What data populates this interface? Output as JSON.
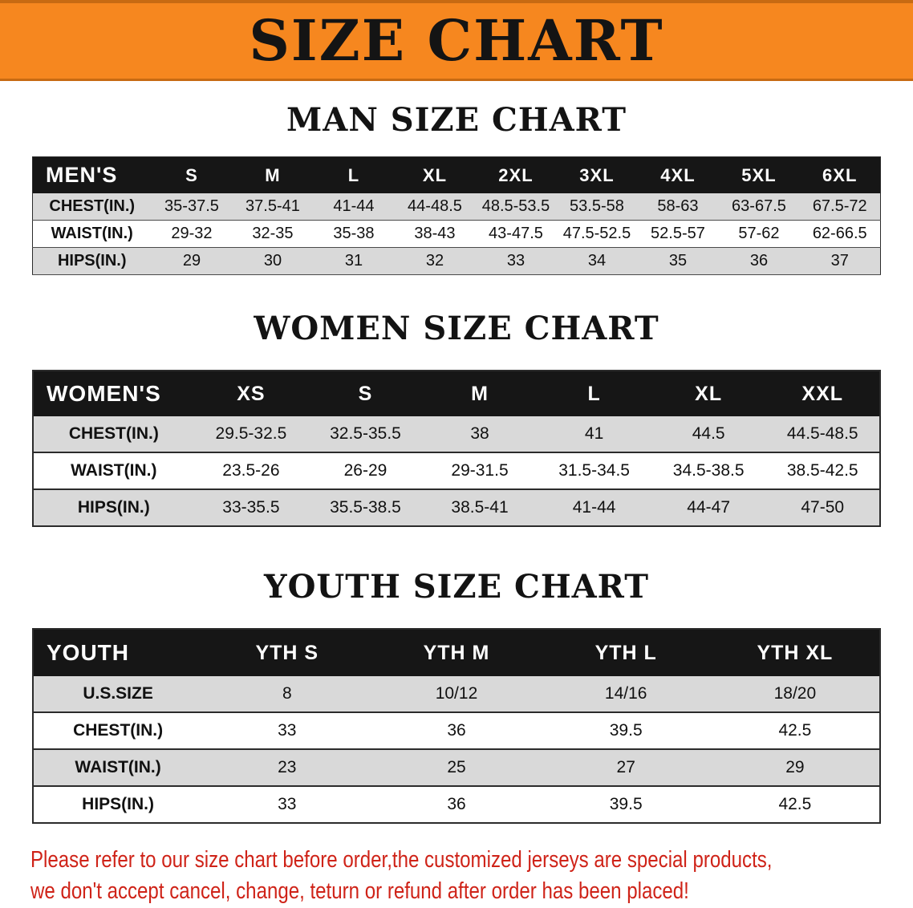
{
  "banner": {
    "title": "SIZE CHART"
  },
  "chart_data": [
    {
      "type": "table",
      "title": "MAN SIZE CHART",
      "header": [
        "MEN'S",
        "S",
        "M",
        "L",
        "XL",
        "2XL",
        "3XL",
        "4XL",
        "5XL",
        "6XL"
      ],
      "rows": [
        [
          "CHEST(IN.)",
          "35-37.5",
          "37.5-41",
          "41-44",
          "44-48.5",
          "48.5-53.5",
          "53.5-58",
          "58-63",
          "63-67.5",
          "67.5-72"
        ],
        [
          "WAIST(IN.)",
          "29-32",
          "32-35",
          "35-38",
          "38-43",
          "43-47.5",
          "47.5-52.5",
          "52.5-57",
          "57-62",
          "62-66.5"
        ],
        [
          "HIPS(IN.)",
          "29",
          "30",
          "31",
          "32",
          "33",
          "34",
          "35",
          "36",
          "37"
        ]
      ]
    },
    {
      "type": "table",
      "title": "WOMEN SIZE CHART",
      "header": [
        "WOMEN'S",
        "XS",
        "S",
        "M",
        "L",
        "XL",
        "XXL"
      ],
      "rows": [
        [
          "CHEST(IN.)",
          "29.5-32.5",
          "32.5-35.5",
          "38",
          "41",
          "44.5",
          "44.5-48.5"
        ],
        [
          "WAIST(IN.)",
          "23.5-26",
          "26-29",
          "29-31.5",
          "31.5-34.5",
          "34.5-38.5",
          "38.5-42.5"
        ],
        [
          "HIPS(IN.)",
          "33-35.5",
          "35.5-38.5",
          "38.5-41",
          "41-44",
          "44-47",
          "47-50"
        ]
      ]
    },
    {
      "type": "table",
      "title": "YOUTH SIZE CHART",
      "header": [
        "YOUTH",
        "YTH S",
        "YTH M",
        "YTH L",
        "YTH XL"
      ],
      "rows": [
        [
          "U.S.SIZE",
          "8",
          "10/12",
          "14/16",
          "18/20"
        ],
        [
          "CHEST(IN.)",
          "33",
          "36",
          "39.5",
          "42.5"
        ],
        [
          "WAIST(IN.)",
          "23",
          "25",
          "27",
          "29"
        ],
        [
          "HIPS(IN.)",
          "33",
          "36",
          "39.5",
          "42.5"
        ]
      ]
    }
  ],
  "disclaimer": {
    "line1": "Please refer to our size chart before order,the customized jerseys are special products,",
    "line2": "we don't accept cancel, change, teturn or refund after order has been placed!"
  },
  "colors": {
    "banner_bg": "#f6871f",
    "table_header_bg": "#161616",
    "row_shade": "#d9d9d9",
    "disclaimer_text": "#cf2318"
  }
}
